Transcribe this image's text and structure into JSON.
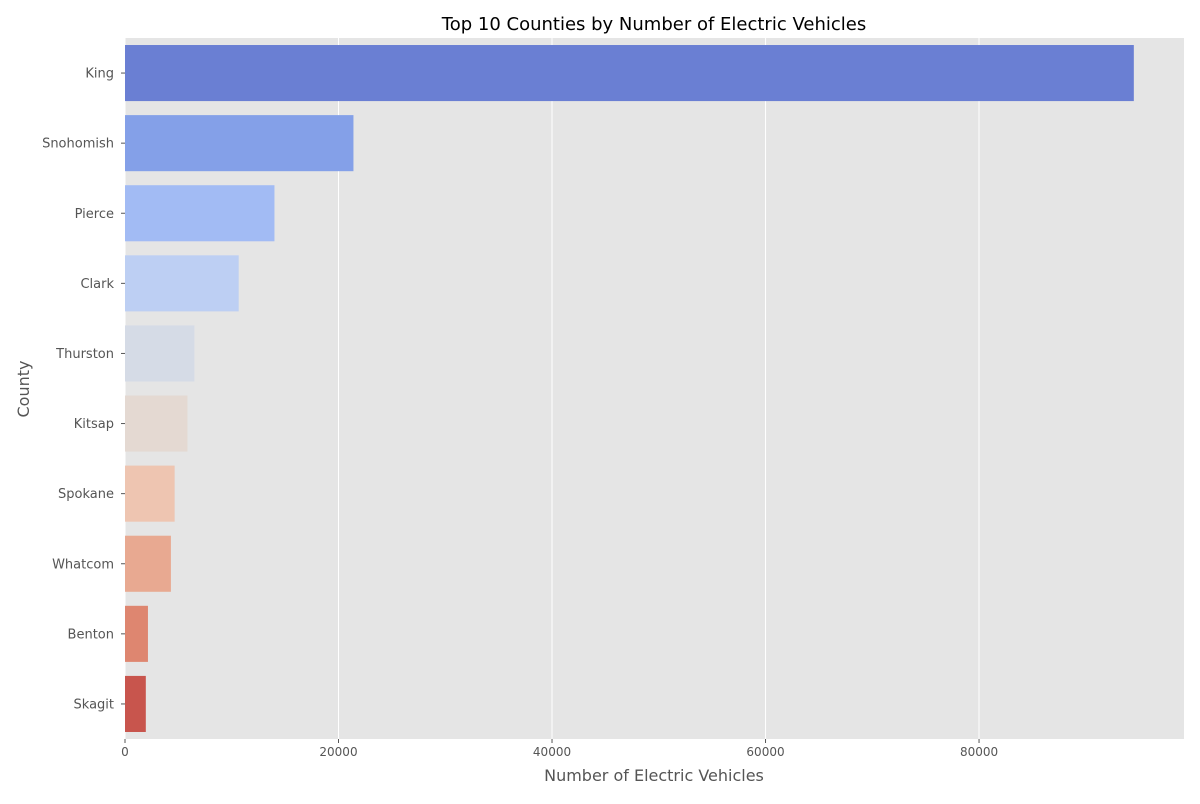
{
  "chart_data": {
    "type": "bar",
    "orientation": "horizontal",
    "title": "Top 10 Counties by Number of Electric Vehicles",
    "xlabel": "Number of Electric Vehicles",
    "ylabel": "County",
    "categories": [
      "King",
      "Snohomish",
      "Pierce",
      "Clark",
      "Thurston",
      "Kitsap",
      "Spokane",
      "Whatcom",
      "Benton",
      "Skagit"
    ],
    "values": [
      94500,
      21400,
      14000,
      10650,
      6500,
      5850,
      4650,
      4300,
      2150,
      1950
    ],
    "xlim": [
      0,
      99200
    ],
    "xticks": [
      0,
      20000,
      40000,
      60000,
      80000
    ],
    "xtick_labels": [
      "0",
      "20000",
      "40000",
      "60000",
      "80000"
    ],
    "grid": true,
    "legend": "none",
    "colors": [
      "#6a7fd3",
      "#84a0e8",
      "#a2bbf4",
      "#bdcff3",
      "#d5dbe6",
      "#e4d9d2",
      "#eec5b1",
      "#e8a991",
      "#de8670",
      "#c8554d"
    ],
    "background": "#e5e5e5",
    "grid_color": "#ffffff"
  }
}
